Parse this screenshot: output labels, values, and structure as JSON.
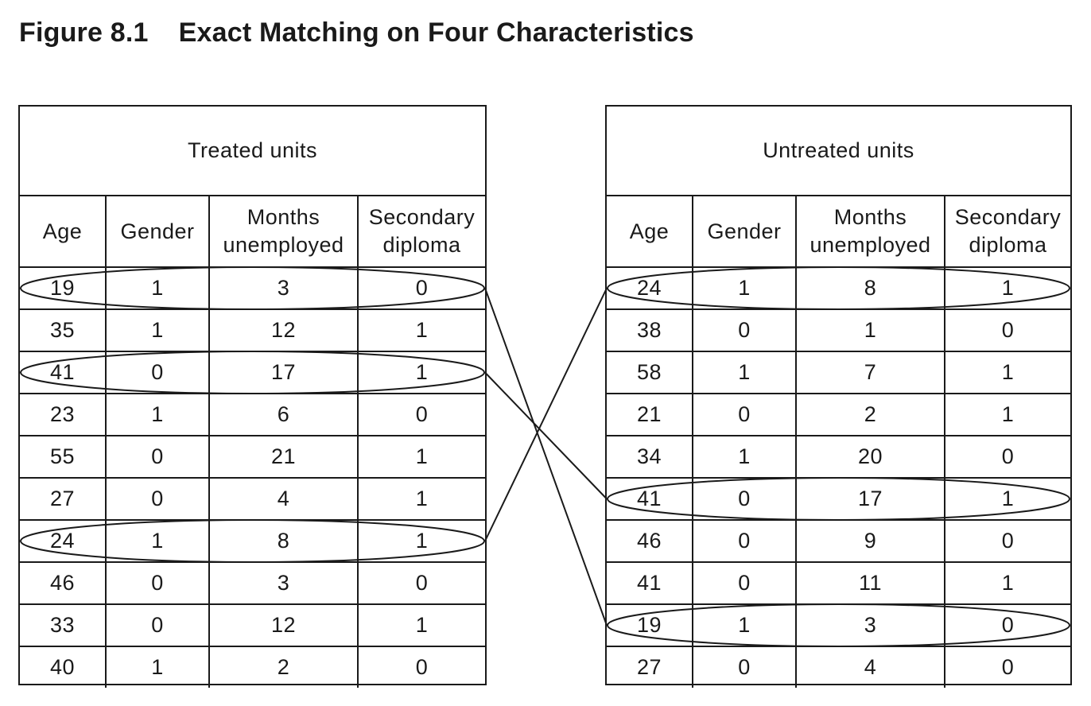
{
  "title": {
    "number": "Figure 8.1",
    "text": "Exact Matching on Four Characteristics"
  },
  "columns": [
    "Age",
    "Gender",
    "Months unemployed",
    "Secondary diploma"
  ],
  "treated": {
    "label": "Treated units",
    "rows": [
      [
        19,
        1,
        3,
        0
      ],
      [
        35,
        1,
        12,
        1
      ],
      [
        41,
        0,
        17,
        1
      ],
      [
        23,
        1,
        6,
        0
      ],
      [
        55,
        0,
        21,
        1
      ],
      [
        27,
        0,
        4,
        1
      ],
      [
        24,
        1,
        8,
        1
      ],
      [
        46,
        0,
        3,
        0
      ],
      [
        33,
        0,
        12,
        1
      ],
      [
        40,
        1,
        2,
        0
      ]
    ]
  },
  "untreated": {
    "label": "Untreated units",
    "rows": [
      [
        24,
        1,
        8,
        1
      ],
      [
        38,
        0,
        1,
        0
      ],
      [
        58,
        1,
        7,
        1
      ],
      [
        21,
        0,
        2,
        1
      ],
      [
        34,
        1,
        20,
        0
      ],
      [
        41,
        0,
        17,
        1
      ],
      [
        46,
        0,
        9,
        0
      ],
      [
        41,
        0,
        11,
        1
      ],
      [
        19,
        1,
        3,
        0
      ],
      [
        27,
        0,
        4,
        0
      ]
    ]
  },
  "matches": [
    {
      "treated_row": 0,
      "untreated_row": 8
    },
    {
      "treated_row": 2,
      "untreated_row": 5
    },
    {
      "treated_row": 6,
      "untreated_row": 0
    }
  ]
}
